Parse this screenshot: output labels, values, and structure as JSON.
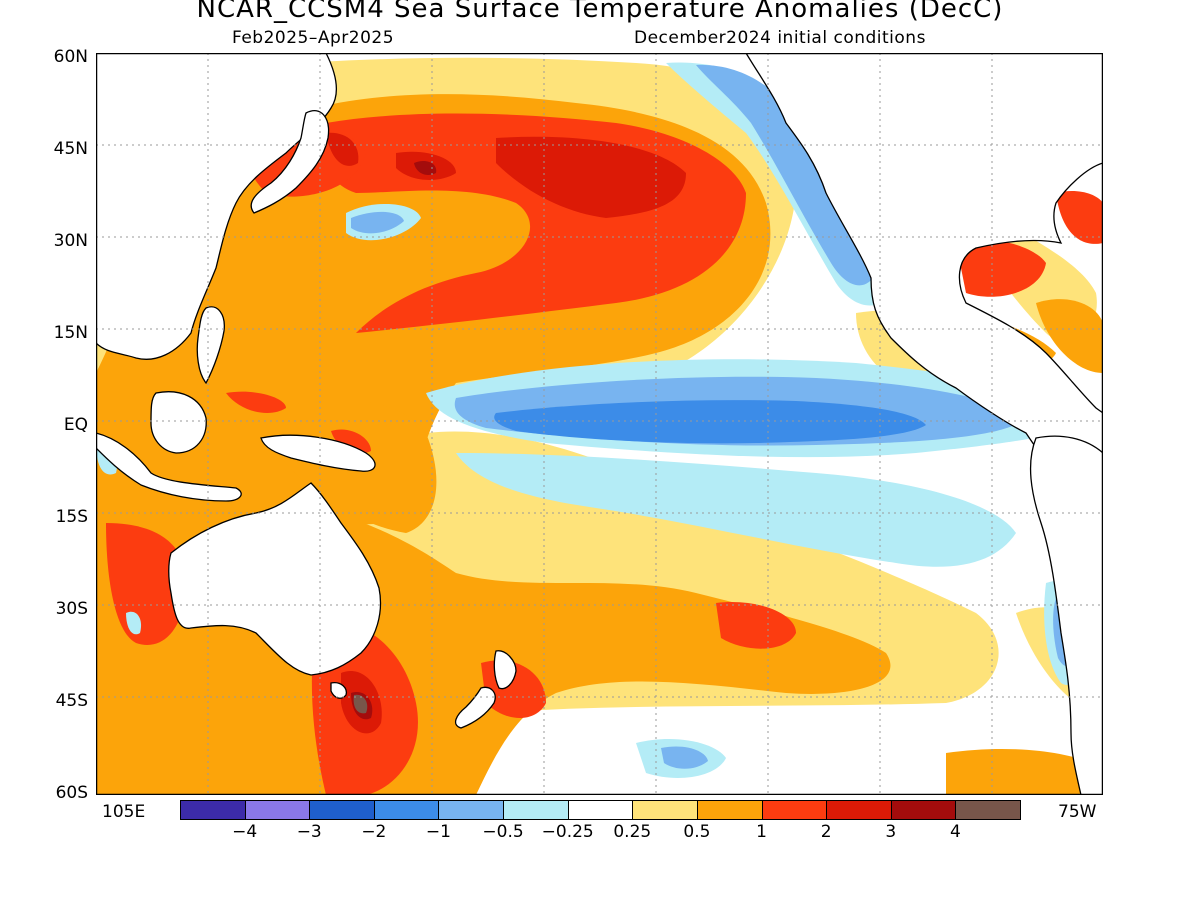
{
  "title": "NCAR_CCSM4 Sea Surface Temperature Anomalies (DecC)",
  "subtitle_left": "Feb2025–Apr2025",
  "subtitle_right": "December2024 initial conditions",
  "lat_labels": [
    "60N",
    "45N",
    "30N",
    "15N",
    "EQ",
    "15S",
    "30S",
    "45S",
    "60S"
  ],
  "lon_labels": {
    "west": "105E",
    "east": "75W"
  },
  "legend": {
    "colors": [
      "#3c2ba8",
      "#8a78e8",
      "#1f5fcc",
      "#3c8ce8",
      "#78b4f0",
      "#b4ecf6",
      "#ffffff",
      "#fee37a",
      "#fca40a",
      "#fc3c10",
      "#dc1a06",
      "#a40c0c",
      "#78564a"
    ],
    "tick_labels": [
      "−4",
      "−3",
      "−2",
      "−1",
      "−0.5",
      "−0.25",
      "0.25",
      "0.5",
      "1",
      "2",
      "3",
      "4"
    ]
  },
  "palette": {
    "ocean": "#ffffff",
    "land": "#ffffff",
    "coast": "#000000",
    "grid": "#9a9a9a"
  }
}
